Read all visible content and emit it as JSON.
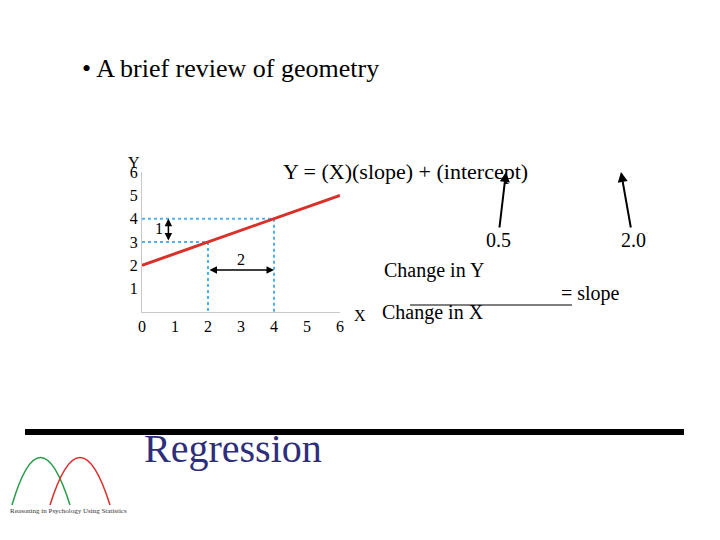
{
  "slide_title": "• A brief review of geometry",
  "footer_title": "Regression",
  "logo_caption": "Reasoning in Psychology Using Statistics",
  "chart_data": {
    "type": "line",
    "x": [
      0,
      6
    ],
    "values": [
      2,
      5
    ],
    "color": "#d9302a",
    "xlabel": "X",
    "ylabel": "Y",
    "xlim": [
      0,
      6
    ],
    "ylim": [
      0,
      6
    ],
    "xticks": [
      0,
      1,
      2,
      3,
      4,
      5,
      6
    ],
    "yticks": [
      1,
      2,
      3,
      4,
      5,
      6
    ],
    "grid": false,
    "guides": [
      {
        "x": 2,
        "y": 3
      },
      {
        "x": 4,
        "y": 4
      }
    ],
    "guide_color": "#4fb0ee",
    "line_style": "dotted",
    "rise": 1,
    "run": 2,
    "equation": "Y = (X)(slope) + (intercept)",
    "slope_label": "0.5",
    "intercept_label": "2.0",
    "numerator": "Change in Y",
    "denominator": "Change in X",
    "fraction_result": "= slope"
  }
}
